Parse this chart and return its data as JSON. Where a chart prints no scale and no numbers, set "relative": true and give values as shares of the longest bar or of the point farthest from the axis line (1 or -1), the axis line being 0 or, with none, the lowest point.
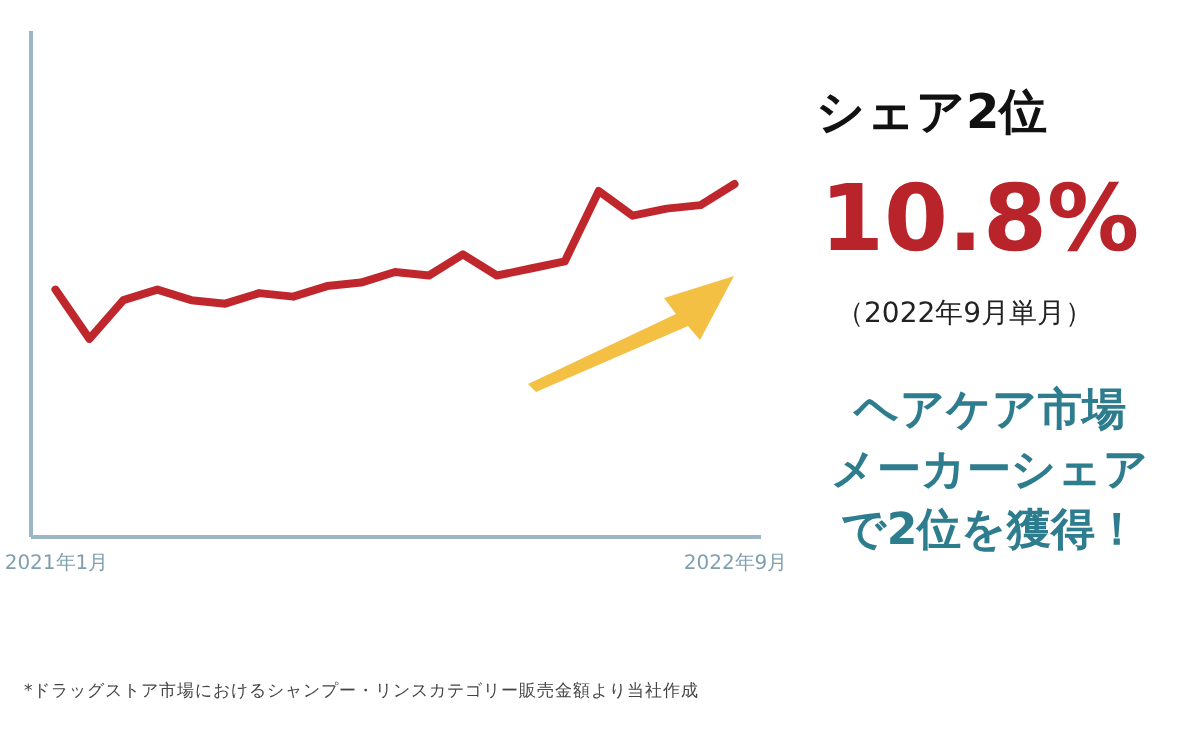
{
  "chart_data": {
    "type": "line",
    "relative": true,
    "categories": [
      "2021年1月",
      null,
      null,
      null,
      null,
      null,
      null,
      null,
      null,
      null,
      null,
      null,
      null,
      null,
      null,
      null,
      null,
      null,
      null,
      null,
      "2022年9月"
    ],
    "series": [
      {
        "color": "#c0272d",
        "values": [
          0.7,
          0.56,
          0.67,
          0.7,
          0.67,
          0.66,
          0.69,
          0.68,
          0.71,
          0.72,
          0.75,
          0.74,
          0.8,
          0.74,
          0.76,
          0.78,
          0.98,
          0.91,
          0.93,
          0.94,
          1
        ]
      }
    ],
    "annotations": [
      "シェア2位",
      "10.8%",
      "（2022年9月単月）",
      "ヘアケア市場",
      "メーカーシェア",
      "で2位を獲得！",
      "*ドラッグストア市場におけるシャンプー・リンスカテゴリー販売金額より当社作成"
    ]
  }
}
